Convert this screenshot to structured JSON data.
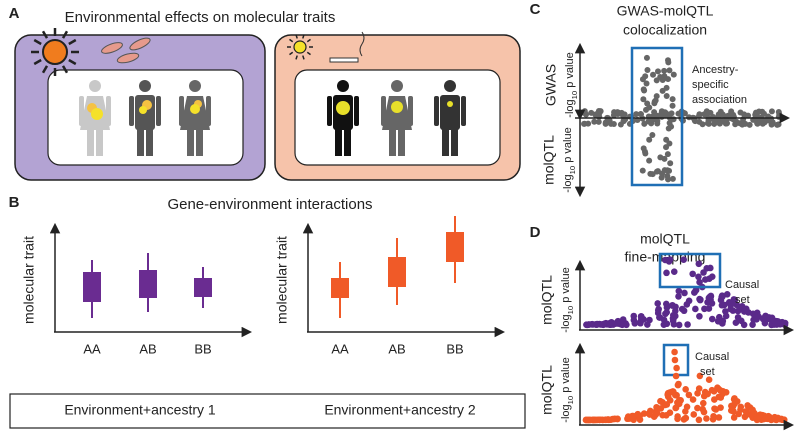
{
  "panel_a": {
    "letter": "A",
    "title": "Environmental effects on molecular traits"
  },
  "panel_b": {
    "letter": "B",
    "title": "Gene-environment interactions",
    "y_axis_label": "molecular trait",
    "genotypes": [
      "AA",
      "AB",
      "BB"
    ]
  },
  "legend": [
    "Environment+ancestry 1",
    "Environment+ancestry 2"
  ],
  "panel_c": {
    "letter": "C",
    "title_lines": [
      "GWAS-molQTL",
      "colocalization"
    ],
    "top_label": "GWAS",
    "bottom_label": "molQTL",
    "axis_label": {
      "prefix": "-log",
      "subscript": "10",
      "suffix": " p value"
    },
    "annotation_lines": [
      "Ancestry-",
      "specific",
      "association"
    ]
  },
  "panel_d": {
    "letter": "D",
    "title_lines": [
      "molQTL",
      "fine-mapping"
    ],
    "y_label": "molQTL",
    "axis_label": {
      "prefix": "-log",
      "subscript": "10",
      "suffix": " p value"
    },
    "annotation_lines": [
      "Causal",
      "set"
    ]
  }
}
